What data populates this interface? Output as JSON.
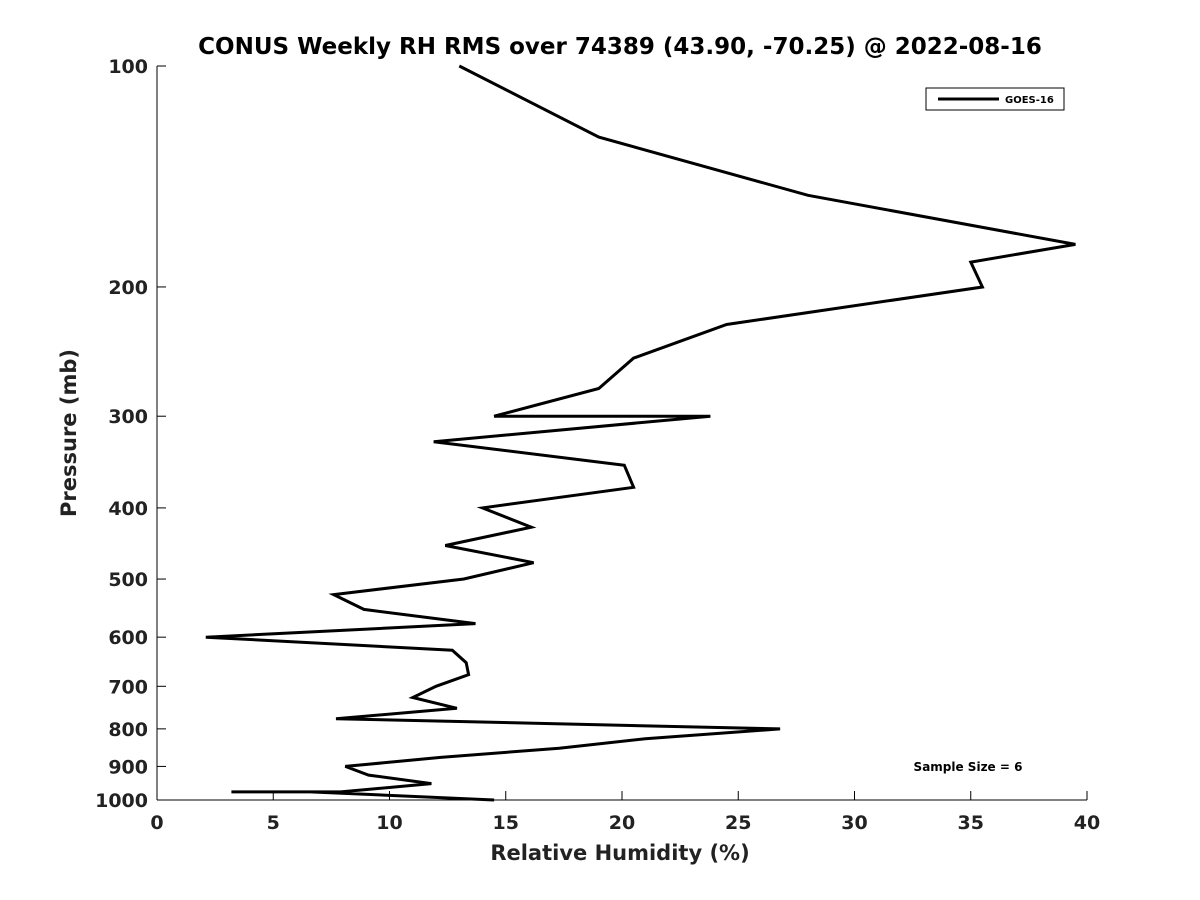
{
  "chart_data": {
    "type": "line",
    "title": "CONUS Weekly RH RMS over 74389 (43.90, -70.25) @ 2022-08-16",
    "xlabel": "Relative Humidity (%)",
    "ylabel": "Pressure (mb)",
    "xlim": [
      0,
      40
    ],
    "ylim": [
      100,
      1000
    ],
    "y_scale": "log",
    "y_reversed": true,
    "grid": false,
    "legend_position": "top-right",
    "x_ticks": [
      0,
      5,
      10,
      15,
      20,
      25,
      30,
      35,
      40
    ],
    "x_tick_labels": [
      "0",
      "5",
      "10",
      "15",
      "20",
      "25",
      "30",
      "35",
      "40"
    ],
    "y_ticks": [
      100,
      200,
      300,
      400,
      500,
      600,
      700,
      800,
      900,
      1000
    ],
    "y_tick_labels": [
      "100",
      "200",
      "300",
      "400",
      "500",
      "600",
      "700",
      "800",
      "900",
      "1000"
    ],
    "annotation": "Sample Size = 6",
    "series": [
      {
        "name": "GOES-16",
        "color": "#000000",
        "points": [
          [
            13.0,
            100
          ],
          [
            19.0,
            125
          ],
          [
            28.0,
            150
          ],
          [
            39.5,
            175
          ],
          [
            35.0,
            185
          ],
          [
            35.5,
            200
          ],
          [
            24.5,
            225
          ],
          [
            20.5,
            250
          ],
          [
            19.0,
            275
          ],
          [
            14.5,
            300
          ],
          [
            23.8,
            300
          ],
          [
            11.9,
            325
          ],
          [
            20.1,
            350
          ],
          [
            20.5,
            375
          ],
          [
            14.0,
            400
          ],
          [
            16.1,
            425
          ],
          [
            12.4,
            450
          ],
          [
            16.2,
            475
          ],
          [
            13.2,
            500
          ],
          [
            7.6,
            525
          ],
          [
            8.9,
            550
          ],
          [
            13.7,
            575
          ],
          [
            2.1,
            600
          ],
          [
            12.7,
            625
          ],
          [
            13.3,
            650
          ],
          [
            13.4,
            675
          ],
          [
            12.0,
            700
          ],
          [
            11.0,
            725
          ],
          [
            12.9,
            750
          ],
          [
            7.7,
            775
          ],
          [
            26.8,
            800
          ],
          [
            21.0,
            825
          ],
          [
            17.3,
            850
          ],
          [
            12.2,
            875
          ],
          [
            8.1,
            900
          ],
          [
            9.1,
            925
          ],
          [
            11.8,
            950
          ],
          [
            7.9,
            975
          ],
          [
            5.3,
            975
          ],
          [
            3.5,
            975
          ],
          [
            3.2,
            975
          ],
          [
            7.9,
            975
          ],
          [
            7.9,
            975
          ],
          [
            6.6,
            975
          ],
          [
            14.5,
            1000
          ]
        ]
      }
    ]
  }
}
